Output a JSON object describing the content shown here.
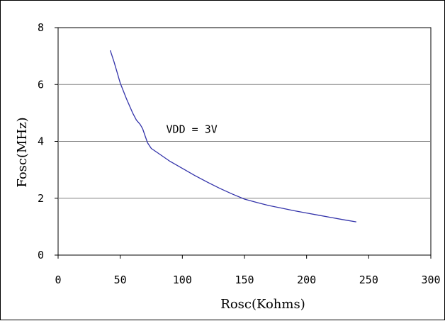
{
  "chart_data": {
    "type": "line",
    "title": "",
    "xlabel": "Rosc(Kohms)",
    "ylabel": "Fosc(MHz)",
    "xlim": [
      0,
      300
    ],
    "ylim": [
      0,
      8
    ],
    "xticks": [
      0,
      50,
      100,
      150,
      200,
      250,
      300
    ],
    "yticks": [
      0,
      2,
      4,
      6,
      8
    ],
    "x_tick_labels": [
      "0",
      "50",
      "100",
      "150",
      "200",
      "250",
      "300"
    ],
    "y_tick_labels": [
      "0",
      "2",
      "4",
      "6",
      "8"
    ],
    "grid": "horizontal",
    "legend": "none",
    "annotations": [
      {
        "text": "VDD = 3V",
        "x": 87,
        "y": 4.3
      }
    ],
    "series": [
      {
        "color": "#3333aa",
        "x": [
          42,
          45,
          48,
          49,
          50,
          55,
          60,
          63,
          66,
          68,
          70,
          72,
          75,
          80,
          90,
          100,
          110,
          120,
          130,
          140,
          150,
          160,
          170,
          180,
          190,
          200,
          210,
          220,
          230,
          240
        ],
        "y": [
          7.2,
          6.8,
          6.35,
          6.2,
          6.05,
          5.5,
          5.0,
          4.75,
          4.6,
          4.45,
          4.2,
          3.95,
          3.75,
          3.6,
          3.3,
          3.05,
          2.8,
          2.57,
          2.35,
          2.15,
          1.97,
          1.85,
          1.74,
          1.65,
          1.56,
          1.48,
          1.4,
          1.32,
          1.24,
          1.17
        ]
      }
    ]
  }
}
